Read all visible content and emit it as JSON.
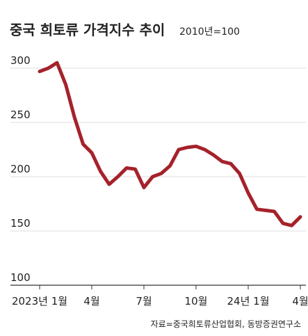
{
  "chart_data": {
    "type": "line",
    "title": "중국 희토류 가격지수 추이",
    "subtitle": "2010년=100",
    "source": "자료=중국희토류산업협회, 동방증권연구소",
    "categories": [
      "2023년 1월",
      null,
      null,
      null,
      null,
      null,
      "4월",
      null,
      null,
      null,
      null,
      null,
      "7월",
      null,
      null,
      null,
      null,
      null,
      "10월",
      null,
      null,
      null,
      null,
      null,
      "24년 1월",
      null,
      null,
      null,
      null,
      null,
      "4월"
    ],
    "series": [
      {
        "name": "가격지수",
        "color": "#a5222b",
        "values": [
          297,
          300,
          305,
          285,
          255,
          230,
          222,
          205,
          193,
          200,
          208,
          207,
          190,
          200,
          203,
          210,
          225,
          227,
          228,
          225,
          220,
          214,
          212,
          203,
          185,
          170,
          169,
          168,
          157,
          155,
          163
        ]
      }
    ],
    "ylim": [
      100,
      300
    ],
    "yticks": [
      100,
      150,
      200,
      250,
      300
    ],
    "grid": true
  }
}
